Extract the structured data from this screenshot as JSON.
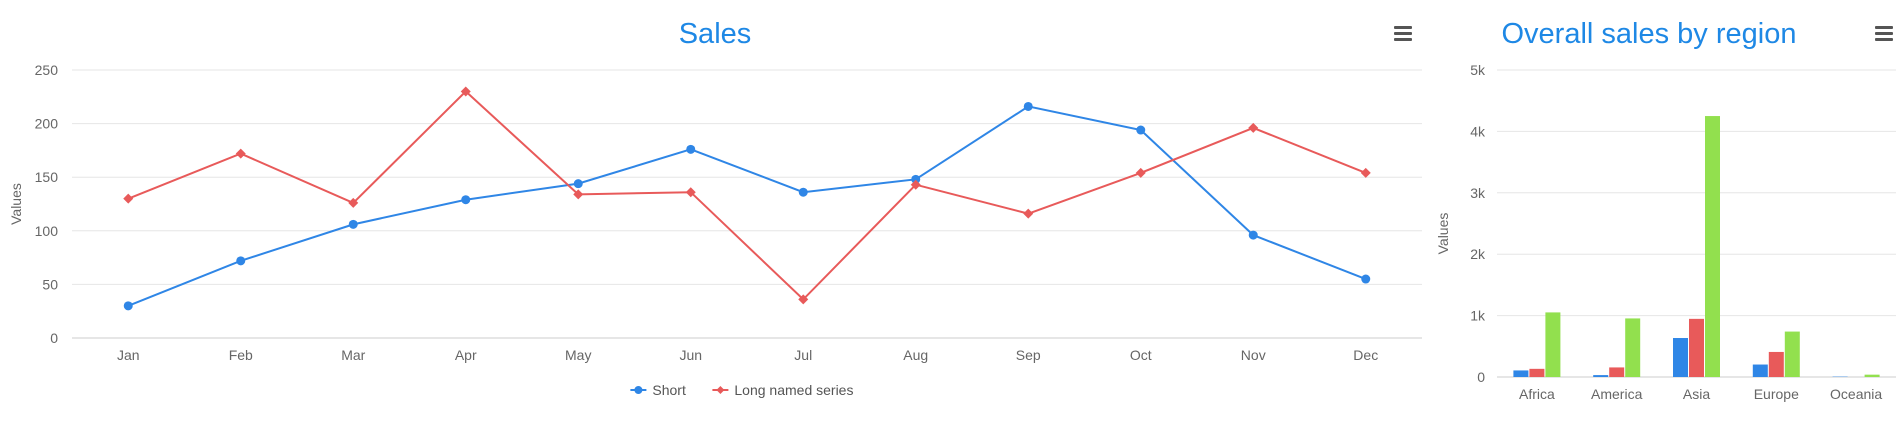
{
  "chart_data": [
    {
      "type": "line",
      "title": "Sales",
      "ylabel": "Values",
      "xlabel": "",
      "categories": [
        "Jan",
        "Feb",
        "Mar",
        "Apr",
        "May",
        "Jun",
        "Jul",
        "Aug",
        "Sep",
        "Oct",
        "Nov",
        "Dec"
      ],
      "ylim": [
        0,
        250
      ],
      "yticks": [
        0,
        50,
        100,
        150,
        200,
        250
      ],
      "grid": true,
      "legend": "bottom-center",
      "series": [
        {
          "name": "Short",
          "color": "#2f86e6",
          "marker": "circle",
          "values": [
            30,
            72,
            106,
            129,
            144,
            176,
            136,
            148,
            216,
            194,
            96,
            55
          ]
        },
        {
          "name": "Long named series",
          "color": "#e85a5a",
          "marker": "diamond",
          "values": [
            130,
            172,
            126,
            230,
            134,
            136,
            36,
            143,
            116,
            154,
            196,
            154
          ]
        }
      ]
    },
    {
      "type": "bar",
      "title": "Overall sales by region",
      "ylabel": "Values",
      "xlabel": "",
      "categories": [
        "Africa",
        "America",
        "Asia",
        "Europe",
        "Oceania"
      ],
      "ylim": [
        0,
        5000
      ],
      "yticks": [
        "0",
        "1k",
        "2k",
        "3k",
        "4k",
        "5k"
      ],
      "grid": true,
      "series": [
        {
          "color": "#2f86e6",
          "values": [
            107,
            31,
            635,
            203,
            6
          ]
        },
        {
          "color": "#e85a5a",
          "values": [
            133,
            156,
            947,
            408,
            0
          ]
        },
        {
          "color": "#92e04e",
          "values": [
            1052,
            954,
            4250,
            740,
            38
          ]
        }
      ]
    }
  ]
}
